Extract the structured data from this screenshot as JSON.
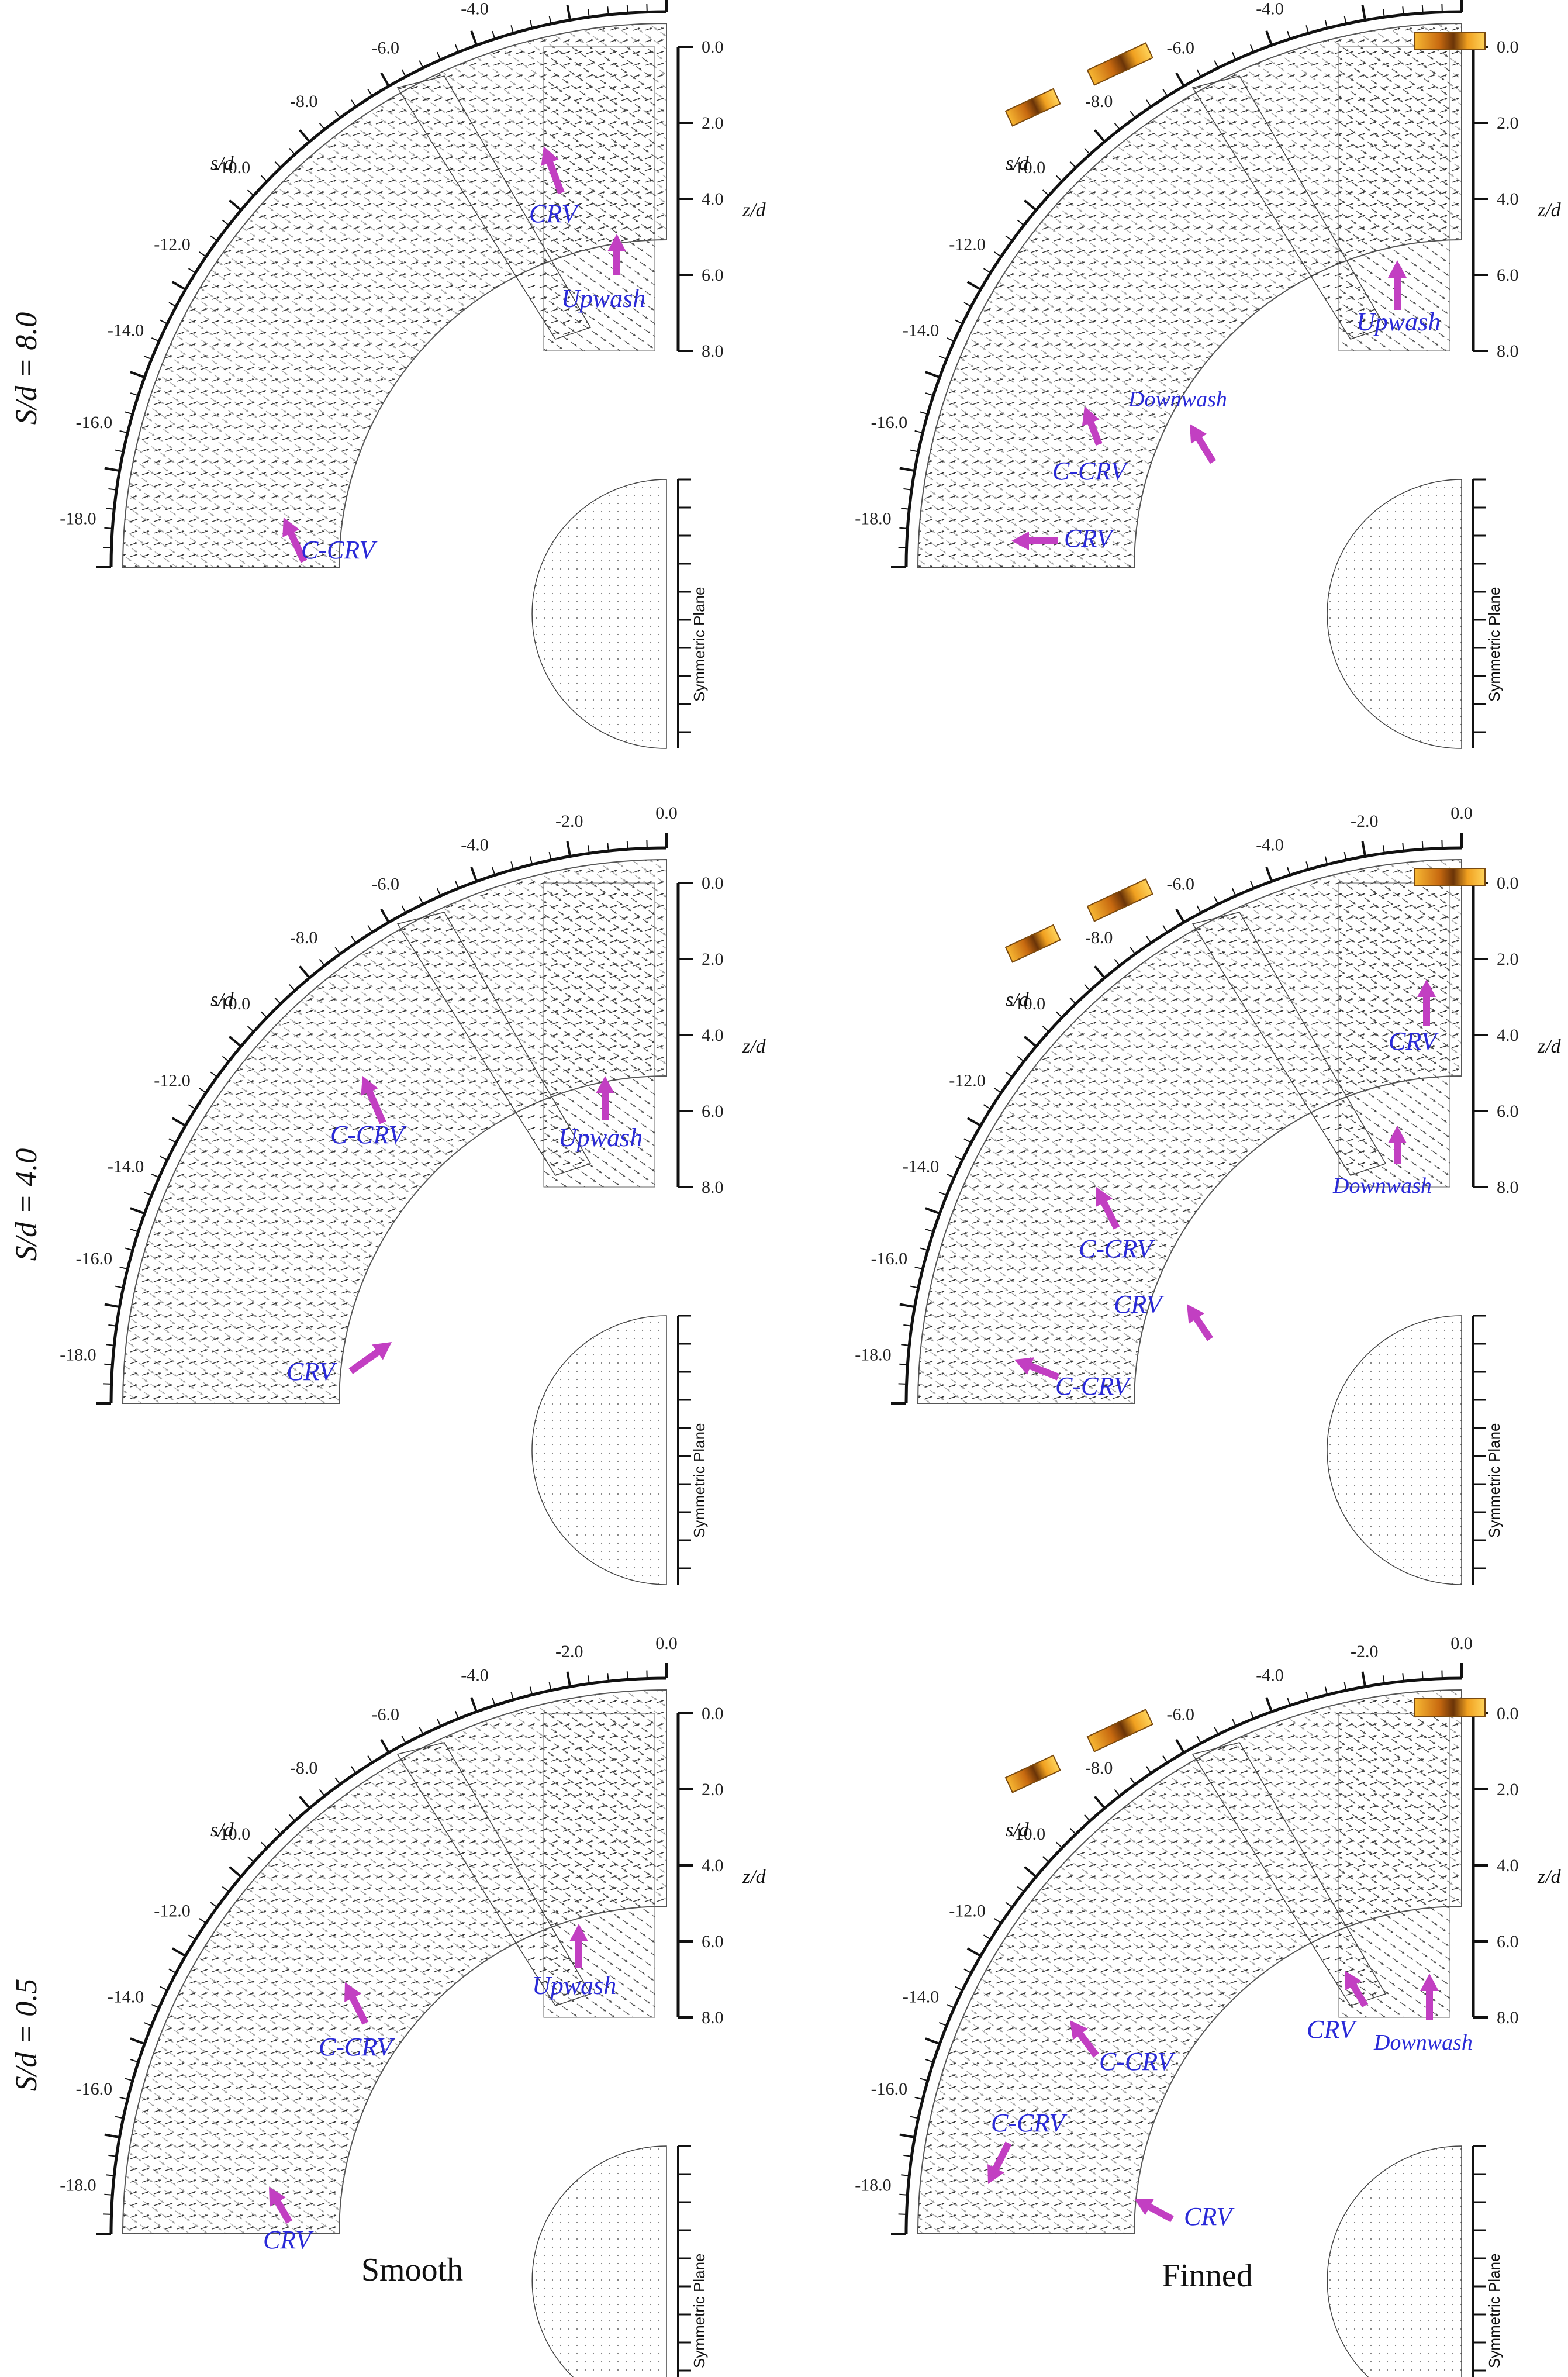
{
  "rows": [
    {
      "label": "S/d = 8.0",
      "smooth_annotations": [
        {
          "text": "CRV"
        },
        {
          "text": "Upwash"
        },
        {
          "text": "C-CRV"
        }
      ],
      "finned_annotations": [
        {
          "text": "Downwash"
        },
        {
          "text": "C-CRV"
        },
        {
          "text": "CRV"
        },
        {
          "text": "Upwash"
        }
      ]
    },
    {
      "label": "S/d = 4.0",
      "smooth_annotations": [
        {
          "text": "C-CRV"
        },
        {
          "text": "Upwash"
        },
        {
          "text": "CRV"
        }
      ],
      "finned_annotations": [
        {
          "text": "CRV"
        },
        {
          "text": "Downwash"
        },
        {
          "text": "C-CRV"
        },
        {
          "text": "CRV"
        },
        {
          "text": "C-CRV"
        }
      ]
    },
    {
      "label": "S/d = 0.5",
      "smooth_annotations": [
        {
          "text": "Upwash"
        },
        {
          "text": "C-CRV"
        },
        {
          "text": "CRV"
        }
      ],
      "finned_annotations": [
        {
          "text": "CRV"
        },
        {
          "text": "Downwash"
        },
        {
          "text": "C-CRV"
        },
        {
          "text": "C-CRV"
        },
        {
          "text": "CRV"
        }
      ]
    }
  ],
  "columns": {
    "smooth": "Smooth",
    "finned": "Finned"
  },
  "axes": {
    "s_label": "s/d",
    "z_label": "z/d",
    "s_ticks": [
      "0.0",
      "-2.0",
      "-4.0",
      "-6.0",
      "-8.0",
      "-10.0",
      "-12.0",
      "-14.0",
      "-16.0",
      "-18.0"
    ],
    "z_ticks": [
      "0.0",
      "2.0",
      "4.0",
      "6.0",
      "8.0"
    ]
  },
  "symmetric_plane_label": "Symmetric Plane",
  "colors": {
    "annotation_text": "#2a2ad8",
    "arrow": "#c23fc2",
    "fin_fill": "#f0a020"
  }
}
